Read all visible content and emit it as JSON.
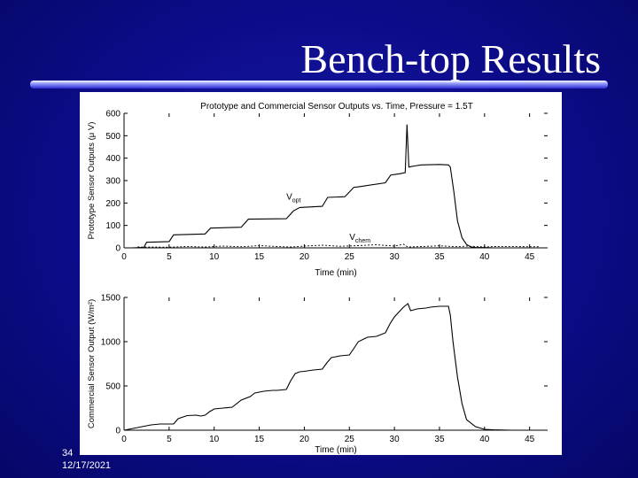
{
  "slide": {
    "title": "Bench-top Results",
    "number": "34",
    "date": "12/17/2021"
  },
  "colors": {
    "background": "#0c0c8a",
    "plot_line": "#000000",
    "figure_bg": "#ffffff"
  },
  "chart_data": [
    {
      "type": "line",
      "title": "Prototype and Commercial Sensor Outputs vs. Time, Pressure = 1.5T",
      "xlabel": "Time (min)",
      "ylabel": "Prototype Sensor Outputs (μ V)",
      "xlim": [
        0,
        47
      ],
      "ylim": [
        0,
        600
      ],
      "xticks": [
        0,
        5,
        10,
        15,
        20,
        25,
        30,
        35,
        40,
        45
      ],
      "yticks": [
        0,
        100,
        200,
        300,
        400,
        500,
        600
      ],
      "grid": false,
      "annotations": [
        {
          "text": "V",
          "subscript": "opt",
          "x": 18,
          "y": 215
        },
        {
          "text": "V",
          "subscript": "chem",
          "x": 25,
          "y": 35
        }
      ],
      "series": [
        {
          "x": [
            0.8,
            2.2,
            2.5,
            5,
            5.5,
            9,
            9.6,
            13,
            13.8,
            18,
            18.8,
            19.5,
            22,
            22.6,
            24.5,
            25.5,
            26,
            29,
            29.6,
            30.5,
            31.2,
            31.4,
            31.6,
            31.8,
            32.2,
            33,
            35,
            36,
            36.2,
            36.6,
            37,
            37.5,
            38,
            38.5,
            39,
            40,
            41,
            47
          ],
          "y": [
            0,
            2,
            25,
            28,
            58,
            62,
            88,
            92,
            128,
            130,
            165,
            180,
            185,
            225,
            228,
            270,
            272,
            290,
            325,
            330,
            335,
            550,
            360,
            362,
            365,
            370,
            372,
            370,
            360,
            250,
            120,
            45,
            15,
            4,
            2,
            1,
            0,
            0
          ]
        },
        {
          "x": [
            1.5,
            5,
            7,
            9,
            11,
            13,
            15,
            17,
            18.5,
            20,
            22,
            24,
            26,
            28,
            30,
            31,
            31.5,
            33,
            35,
            36,
            37,
            38,
            39,
            40,
            41,
            46
          ],
          "y": [
            4,
            3,
            6,
            4,
            8,
            5,
            10,
            6,
            4,
            8,
            12,
            7,
            10,
            14,
            8,
            16,
            4,
            6,
            9,
            7,
            5,
            8,
            6,
            4,
            6,
            5
          ]
        }
      ]
    },
    {
      "type": "line",
      "title": "",
      "xlabel": "Time (min)",
      "ylabel": "Commercial Sensor Output (W/m²)",
      "xlim": [
        0,
        47
      ],
      "ylim": [
        0,
        1500
      ],
      "xticks": [
        0,
        5,
        10,
        15,
        20,
        25,
        30,
        35,
        40,
        45
      ],
      "yticks": [
        0,
        500,
        1000,
        1500
      ],
      "grid": false,
      "series": [
        {
          "x": [
            0,
            1,
            2,
            3,
            4,
            5.5,
            6,
            7,
            8,
            8.5,
            9,
            9.5,
            10,
            11,
            12,
            13,
            14,
            14.5,
            15.5,
            16.5,
            17,
            18,
            18.5,
            19,
            19.5,
            20,
            21,
            22,
            22.5,
            23,
            23.5,
            24,
            25,
            26,
            27,
            28,
            28.5,
            29,
            29.5,
            30,
            31,
            31.5,
            31.8,
            32.5,
            33.5,
            34,
            35,
            36,
            36.2,
            36.5,
            37,
            37.5,
            38,
            39,
            40,
            41,
            43
          ],
          "y": [
            0,
            20,
            40,
            60,
            70,
            70,
            130,
            165,
            170,
            160,
            170,
            210,
            240,
            250,
            260,
            340,
            380,
            420,
            440,
            450,
            450,
            460,
            560,
            640,
            660,
            665,
            680,
            690,
            760,
            820,
            830,
            840,
            850,
            1000,
            1050,
            1060,
            1080,
            1100,
            1200,
            1280,
            1390,
            1430,
            1350,
            1370,
            1380,
            1390,
            1400,
            1400,
            1300,
            1000,
            600,
            300,
            120,
            40,
            10,
            5,
            0
          ]
        }
      ]
    }
  ]
}
